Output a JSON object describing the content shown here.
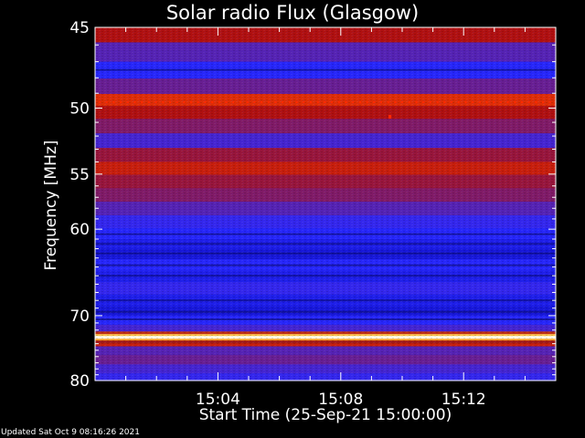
{
  "chart_data": {
    "type": "heatmap",
    "title": "Solar radio Flux (Glasgow)",
    "xlabel": "Start Time (25-Sep-21 15:00:00)",
    "ylabel": "Frequency [MHz]",
    "x_tick_labels": [
      "15:04",
      "15:08",
      "15:12"
    ],
    "x_ticks_minutes": [
      4,
      8,
      12
    ],
    "x_range_minutes": [
      0,
      15
    ],
    "y_tick_labels": [
      "45",
      "50",
      "55",
      "60",
      "70",
      "80"
    ],
    "y_ticks_mhz": [
      45,
      50,
      55,
      60,
      70,
      80
    ],
    "y_range_mhz": [
      45,
      80
    ],
    "y_scale": "reciprocal",
    "grid": false,
    "colormap": [
      "#000000",
      "#1010c8",
      "#2828ff",
      "#6020a0",
      "#b01010",
      "#ff4000",
      "#ffff80",
      "#ffffff"
    ],
    "bands": [
      {
        "freq": 45.2,
        "level": 0.5
      },
      {
        "freq": 46.5,
        "level": 0.3
      },
      {
        "freq": 47.5,
        "level": 0.15
      },
      {
        "freq": 48.6,
        "level": 0.35
      },
      {
        "freq": 49.5,
        "level": 0.6
      },
      {
        "freq": 50.2,
        "level": 0.5
      },
      {
        "freq": 51.3,
        "level": 0.4
      },
      {
        "freq": 52.3,
        "level": 0.25
      },
      {
        "freq": 53.5,
        "level": 0.45
      },
      {
        "freq": 54.5,
        "level": 0.55
      },
      {
        "freq": 55.6,
        "level": 0.45
      },
      {
        "freq": 56.8,
        "level": 0.4
      },
      {
        "freq": 58.0,
        "level": 0.3
      },
      {
        "freq": 59.3,
        "level": 0.2
      },
      {
        "freq": 60.5,
        "level": 0.15
      },
      {
        "freq": 61.5,
        "level": 0.1
      },
      {
        "freq": 62.5,
        "level": 0.05
      },
      {
        "freq": 63.8,
        "level": 0.15
      },
      {
        "freq": 65.0,
        "level": 0.1
      },
      {
        "freq": 66.5,
        "level": 0.2
      },
      {
        "freq": 68.0,
        "level": 0.1
      },
      {
        "freq": 69.5,
        "level": 0.05
      },
      {
        "freq": 70.5,
        "level": 0.15
      },
      {
        "freq": 72.0,
        "level": 0.25
      },
      {
        "freq": 73.0,
        "level": 1.0
      },
      {
        "freq": 73.8,
        "level": 0.55
      },
      {
        "freq": 75.0,
        "level": 0.3
      },
      {
        "freq": 76.5,
        "level": 0.35
      },
      {
        "freq": 78.0,
        "level": 0.25
      },
      {
        "freq": 79.5,
        "level": 0.2
      }
    ],
    "interference_dots": {
      "freq": 49.6,
      "level": 0.7
    },
    "spot": {
      "minute": 9.6,
      "freq": 50.6,
      "level": 0.7
    }
  },
  "footer": "Updated Sat Oct  9 08:16:26 2021"
}
